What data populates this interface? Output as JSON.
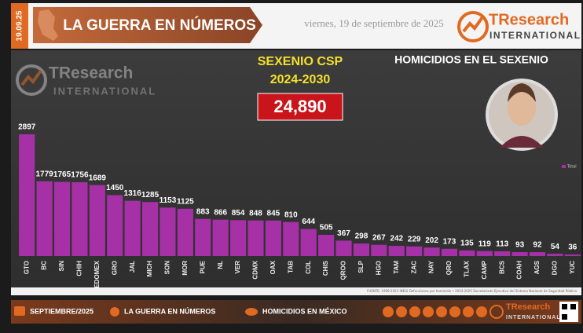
{
  "header": {
    "date_tag": "19.09.25",
    "banner": "LA GUERRA EN NÚMEROS",
    "date": "viernes, 19 de septiembre de 2025",
    "logo_main": "TResearch",
    "logo_sub": "INTERNATIONAL"
  },
  "panel": {
    "title_line1": "SEXENIO CSP",
    "title_line2": "2024-2030",
    "total": "24,890",
    "subtitle": "HOMICIDIOS EN EL SEXENIO",
    "logo_main": "TResearch",
    "logo_sub": "INTERNATIONAL"
  },
  "chart_data": {
    "type": "bar",
    "categories": [
      "GTO",
      "BC",
      "SIN",
      "CHIH",
      "EDOMEX",
      "GRO",
      "JAL",
      "MICH",
      "SON",
      "MOR",
      "PUE",
      "NL",
      "VER",
      "CDMX",
      "OAX",
      "TAB",
      "COL",
      "CHIS",
      "QROO",
      "SLP",
      "HGO",
      "TAM",
      "ZAC",
      "NAY",
      "QRO",
      "TLAX",
      "CAMP",
      "BCS",
      "COAH",
      "AGS",
      "DGO",
      "YUC"
    ],
    "series": [
      {
        "name": "Total",
        "color": "#a630a6",
        "values": [
          2897,
          1779,
          1765,
          1756,
          1689,
          1450,
          1316,
          1285,
          1153,
          1125,
          883,
          866,
          854,
          848,
          845,
          810,
          644,
          505,
          367,
          298,
          267,
          242,
          229,
          202,
          173,
          135,
          119,
          113,
          93,
          92,
          54,
          36
        ]
      }
    ],
    "source": "FUENTE: 1999-2023 INEGI Defunciones por homicidio • 2024-2025 Secretariado Ejecutivo del Sistema Nacional de Seguridad Pública"
  },
  "footer": {
    "month": "SEPTIEMBRE/2025",
    "section": "LA GUERRA EN NÚMEROS",
    "topic": "HOMICIDIOS EN MÉXICO",
    "logo_main": "TResearch",
    "logo_sub": "INTERNATIONAL"
  }
}
